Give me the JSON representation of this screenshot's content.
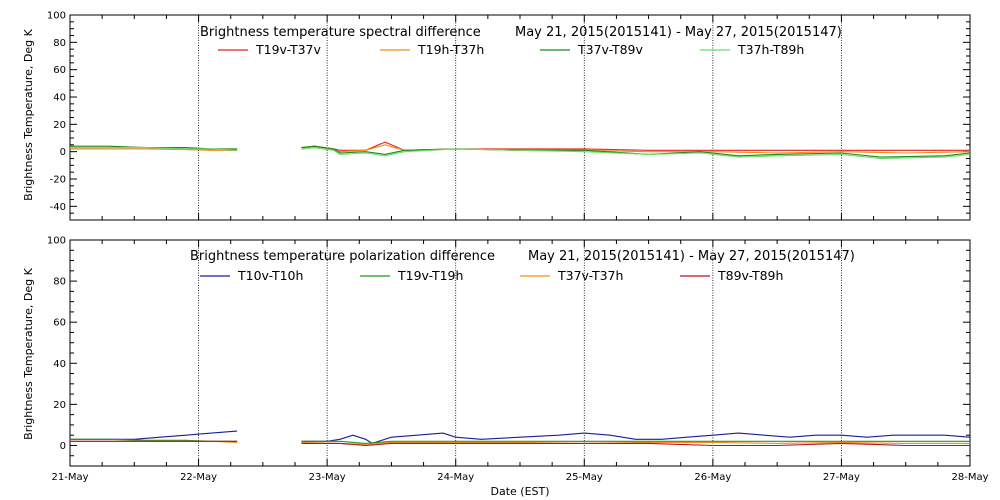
{
  "chart_data": [
    {
      "type": "line",
      "title": "Brightness temperature spectral difference",
      "date_range": "May 21, 2015(2015141) - May 27, 2015(2015147)",
      "ylabel": "Brightness Temperature, Deg K",
      "xlabel": "",
      "ylim": [
        -50,
        100
      ],
      "yticks": [
        -40,
        -20,
        0,
        20,
        40,
        60,
        80,
        100
      ],
      "xlim": [
        0,
        7
      ],
      "grid": "vertical dotted at day boundaries",
      "legend_position": "top",
      "series": [
        {
          "name": "T19v-T37v",
          "color": "#e8241b",
          "segments": [
            {
              "x": [
                0,
                0.3,
                0.6,
                0.9,
                1.1,
                1.3
              ],
              "y": [
                3,
                3,
                3,
                2,
                1.5,
                1
              ]
            },
            {
              "x": [
                1.8,
                1.9,
                2.05,
                2.1,
                2.3,
                2.45,
                2.6,
                3.0,
                3.5,
                4.0,
                4.5,
                5.0,
                5.5,
                6.0,
                6.5,
                7.0
              ],
              "y": [
                3,
                4,
                2,
                1,
                1,
                7,
                1,
                2,
                2,
                2,
                1,
                1,
                1,
                1,
                1,
                1
              ]
            }
          ]
        },
        {
          "name": "T19h-T37h",
          "color": "#f08c1e",
          "segments": [
            {
              "x": [
                0,
                0.3,
                0.6,
                0.9,
                1.1,
                1.3
              ],
              "y": [
                2,
                2,
                2,
                1.5,
                1,
                1
              ]
            },
            {
              "x": [
                1.8,
                1.9,
                2.05,
                2.1,
                2.3,
                2.45,
                2.6,
                3.0,
                3.5,
                4.0,
                4.5,
                5.0,
                5.5,
                6.0,
                6.5,
                7.0
              ],
              "y": [
                2,
                3,
                1,
                0,
                1,
                5,
                1,
                2,
                1,
                1,
                0,
                0,
                -1,
                0,
                -1,
                0
              ]
            }
          ]
        },
        {
          "name": "T37v-T89v",
          "color": "#1a8a1a",
          "segments": [
            {
              "x": [
                0,
                0.3,
                0.6,
                0.9,
                1.1,
                1.3
              ],
              "y": [
                4,
                4,
                3,
                3,
                2,
                2
              ]
            },
            {
              "x": [
                1.8,
                1.9,
                2.05,
                2.1,
                2.3,
                2.45,
                2.6,
                3.0,
                3.5,
                4.0,
                4.5,
                4.9,
                5.2,
                5.5,
                6.0,
                6.3,
                6.8,
                7.0
              ],
              "y": [
                3,
                4,
                2,
                -1,
                0,
                -2,
                1,
                2,
                1,
                1,
                -2,
                0,
                -3,
                -2,
                -1,
                -4,
                -3,
                -1
              ]
            }
          ]
        },
        {
          "name": "T37h-T89h",
          "color": "#6cdc6c",
          "segments": [
            {
              "x": [
                0,
                0.3,
                0.6,
                0.9,
                1.1,
                1.3
              ],
              "y": [
                3,
                3,
                3,
                2,
                2,
                1
              ]
            },
            {
              "x": [
                1.8,
                1.9,
                2.05,
                2.1,
                2.3,
                2.45,
                2.6,
                3.0,
                3.5,
                4.0,
                4.5,
                4.9,
                5.2,
                5.5,
                6.0,
                6.3,
                6.8,
                7.0
              ],
              "y": [
                2,
                3,
                1,
                -2,
                -1,
                -3,
                0,
                2,
                1,
                0,
                -2,
                -1,
                -4,
                -3,
                -2,
                -5,
                -4,
                -2
              ]
            }
          ]
        }
      ]
    },
    {
      "type": "line",
      "title": "Brightness temperature polarization difference",
      "date_range": "May 21, 2015(2015141) - May 27, 2015(2015147)",
      "ylabel": "Brightness Temperature, Deg K",
      "xlabel": "Date (EST)",
      "ylim": [
        -10,
        100
      ],
      "yticks": [
        0,
        20,
        40,
        60,
        80,
        100
      ],
      "xlim": [
        0,
        7
      ],
      "xticks": [
        "21-May",
        "22-May",
        "23-May",
        "24-May",
        "25-May",
        "26-May",
        "27-May",
        "28-May"
      ],
      "grid": "vertical dotted at day boundaries",
      "legend_position": "top",
      "series": [
        {
          "name": "T10v-T10h",
          "color": "#1c1c9c",
          "segments": [
            {
              "x": [
                0,
                0.3,
                0.5,
                0.7,
                0.9,
                1.1,
                1.3
              ],
              "y": [
                3,
                3,
                3,
                4,
                5,
                6,
                7
              ]
            },
            {
              "x": [
                1.8,
                2.0,
                2.1,
                2.2,
                2.3,
                2.35,
                2.5,
                2.7,
                2.9,
                3.0,
                3.2,
                3.5,
                3.8,
                4.0,
                4.2,
                4.4,
                4.6,
                4.8,
                5.0,
                5.2,
                5.4,
                5.6,
                5.8,
                6.0,
                6.2,
                6.4,
                6.6,
                6.8,
                7.0
              ],
              "y": [
                2,
                2,
                3,
                5,
                3,
                1,
                4,
                5,
                6,
                4,
                3,
                4,
                5,
                6,
                5,
                3,
                3,
                4,
                5,
                6,
                5,
                4,
                5,
                5,
                4,
                5,
                5,
                5,
                4
              ]
            }
          ]
        },
        {
          "name": "T19v-T19h",
          "color": "#1c9c1c",
          "segments": [
            {
              "x": [
                0,
                0.3,
                0.6,
                0.9,
                1.1,
                1.3
              ],
              "y": [
                3,
                3,
                2.5,
                2.5,
                2,
                2
              ]
            },
            {
              "x": [
                1.8,
                2.1,
                2.3,
                2.5,
                3.0,
                3.5,
                4.0,
                4.5,
                5.0,
                5.5,
                6.0,
                6.5,
                7.0
              ],
              "y": [
                2,
                2,
                1,
                2,
                2,
                2,
                2,
                2,
                2,
                2,
                2,
                2,
                2
              ]
            }
          ]
        },
        {
          "name": "T37v-T37h",
          "color": "#f08c1e",
          "segments": [
            {
              "x": [
                0,
                0.3,
                0.6,
                0.9,
                1.1,
                1.3
              ],
              "y": [
                2,
                2,
                2,
                2,
                2,
                1.5
              ]
            },
            {
              "x": [
                1.8,
                2.1,
                2.3,
                2.5,
                3.0,
                3.5,
                4.0,
                4.5,
                5.0,
                5.5,
                6.0,
                6.5,
                7.0
              ],
              "y": [
                1.5,
                1,
                0.5,
                1.5,
                1.5,
                1.5,
                1,
                1.5,
                1.5,
                1,
                1.5,
                1,
                1
              ]
            }
          ]
        },
        {
          "name": "T89v-T89h",
          "color": "#b4141e",
          "segments": [
            {
              "x": [
                0,
                0.3,
                0.6,
                0.9,
                1.1,
                1.3
              ],
              "y": [
                2,
                2,
                2,
                2,
                2,
                2
              ]
            },
            {
              "x": [
                1.8,
                2.1,
                2.3,
                2.5,
                3.0,
                3.5,
                4.0,
                4.5,
                5.0,
                5.5,
                6.0,
                6.5,
                7.0
              ],
              "y": [
                1,
                1,
                0,
                1,
                1,
                1,
                1,
                1,
                0,
                0,
                1,
                0,
                0
              ]
            }
          ]
        }
      ]
    }
  ]
}
